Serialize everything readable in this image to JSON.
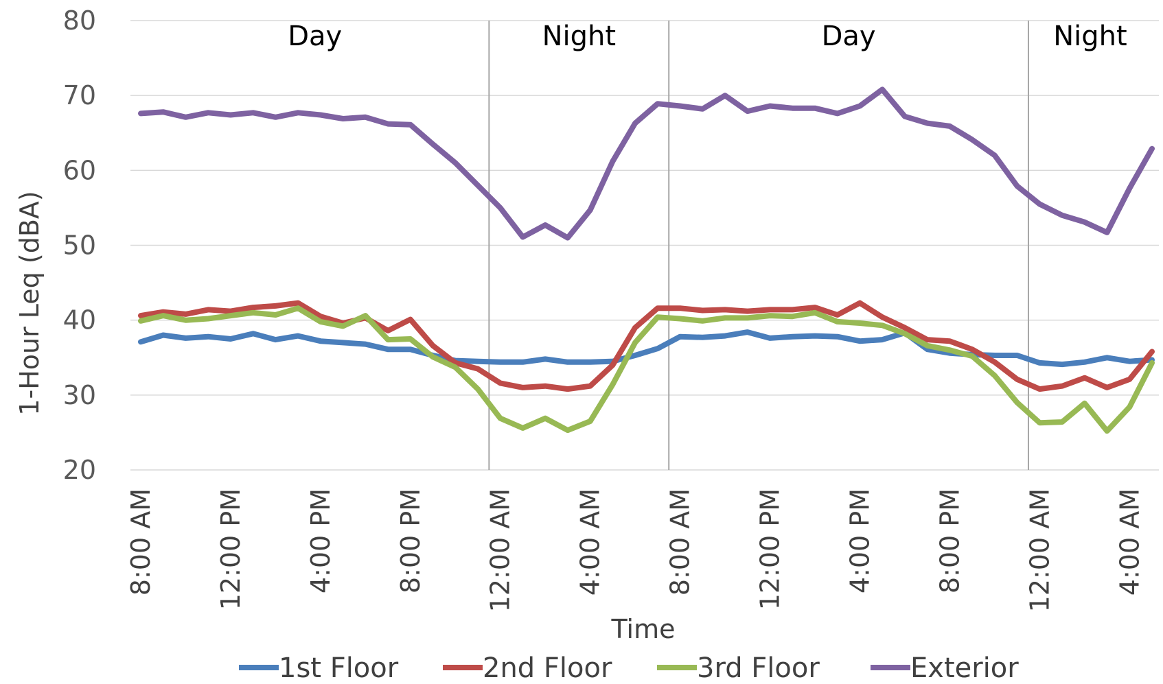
{
  "chart_data": {
    "type": "line",
    "xlabel": "Time",
    "ylabel": "1-Hour Leq (dBA)",
    "ylim": [
      20,
      80
    ],
    "yticks": [
      20,
      30,
      40,
      50,
      60,
      70,
      80
    ],
    "grid": "horizontal",
    "legend_position": "bottom",
    "x_tick_labels": [
      {
        "index": 0,
        "label": "8:00 AM"
      },
      {
        "index": 4,
        "label": "12:00 PM"
      },
      {
        "index": 8,
        "label": "4:00 PM"
      },
      {
        "index": 12,
        "label": "8:00 PM"
      },
      {
        "index": 16,
        "label": "12:00 AM"
      },
      {
        "index": 20,
        "label": "4:00 AM"
      },
      {
        "index": 24,
        "label": "8:00 AM"
      },
      {
        "index": 28,
        "label": "12:00 PM"
      },
      {
        "index": 32,
        "label": "4:00 PM"
      },
      {
        "index": 36,
        "label": "8:00 PM"
      },
      {
        "index": 40,
        "label": "12:00 AM"
      },
      {
        "index": 44,
        "label": "4:00 AM"
      }
    ],
    "x_count": 46,
    "periods": [
      {
        "label": "Day",
        "start": 0,
        "end": 15.5
      },
      {
        "label": "Night",
        "start": 15.5,
        "end": 23.5
      },
      {
        "label": "Day",
        "start": 23.5,
        "end": 39.5
      },
      {
        "label": "Night",
        "start": 39.5,
        "end": 45
      }
    ],
    "series": [
      {
        "name": "1st Floor",
        "color": "#4a7ebb",
        "values": [
          37.1,
          38.0,
          37.6,
          37.8,
          37.5,
          38.2,
          37.4,
          37.9,
          37.2,
          37.0,
          36.8,
          36.1,
          36.1,
          35.3,
          34.6,
          34.5,
          34.4,
          34.4,
          34.8,
          34.4,
          34.4,
          34.5,
          35.3,
          36.2,
          37.8,
          37.7,
          37.9,
          38.4,
          37.6,
          37.8,
          37.9,
          37.8,
          37.2,
          37.4,
          38.3,
          36.1,
          35.6,
          35.4,
          35.3,
          35.3,
          34.3,
          34.1,
          34.4,
          35.0,
          34.5,
          34.7
        ]
      },
      {
        "name": "2nd Floor",
        "color": "#be4b48",
        "values": [
          40.6,
          41.1,
          40.8,
          41.4,
          41.2,
          41.7,
          41.9,
          42.3,
          40.5,
          39.6,
          40.3,
          38.6,
          40.1,
          36.6,
          34.3,
          33.5,
          31.6,
          31.0,
          31.2,
          30.8,
          31.2,
          34.0,
          39.0,
          41.6,
          41.6,
          41.3,
          41.4,
          41.2,
          41.4,
          41.4,
          41.7,
          40.7,
          42.3,
          40.4,
          39.0,
          37.4,
          37.2,
          36.1,
          34.4,
          32.1,
          30.8,
          31.2,
          32.3,
          31.0,
          32.1,
          35.8
        ]
      },
      {
        "name": "3rd Floor",
        "color": "#98b954",
        "values": [
          39.9,
          40.6,
          40.0,
          40.2,
          40.6,
          41.0,
          40.7,
          41.6,
          39.8,
          39.2,
          40.6,
          37.4,
          37.5,
          35.1,
          33.7,
          30.8,
          26.9,
          25.6,
          26.9,
          25.3,
          26.5,
          31.4,
          37.0,
          40.4,
          40.2,
          39.9,
          40.3,
          40.3,
          40.6,
          40.5,
          41.0,
          39.8,
          39.6,
          39.3,
          38.2,
          36.6,
          36.0,
          35.2,
          32.6,
          29.0,
          26.3,
          26.4,
          28.9,
          25.2,
          28.4,
          34.3
        ]
      },
      {
        "name": "Exterior",
        "color": "#7e62a1",
        "values": [
          67.6,
          67.8,
          67.1,
          67.7,
          67.4,
          67.7,
          67.1,
          67.7,
          67.4,
          66.9,
          67.1,
          66.2,
          66.1,
          63.5,
          61.0,
          58.0,
          55.0,
          51.1,
          52.7,
          51.0,
          54.7,
          61.2,
          66.3,
          68.9,
          68.6,
          68.2,
          70.0,
          67.9,
          68.6,
          68.3,
          68.3,
          67.6,
          68.6,
          70.8,
          67.2,
          66.3,
          65.9,
          64.1,
          62.0,
          57.9,
          55.5,
          54.0,
          53.1,
          51.7,
          57.6,
          62.9
        ]
      }
    ]
  }
}
